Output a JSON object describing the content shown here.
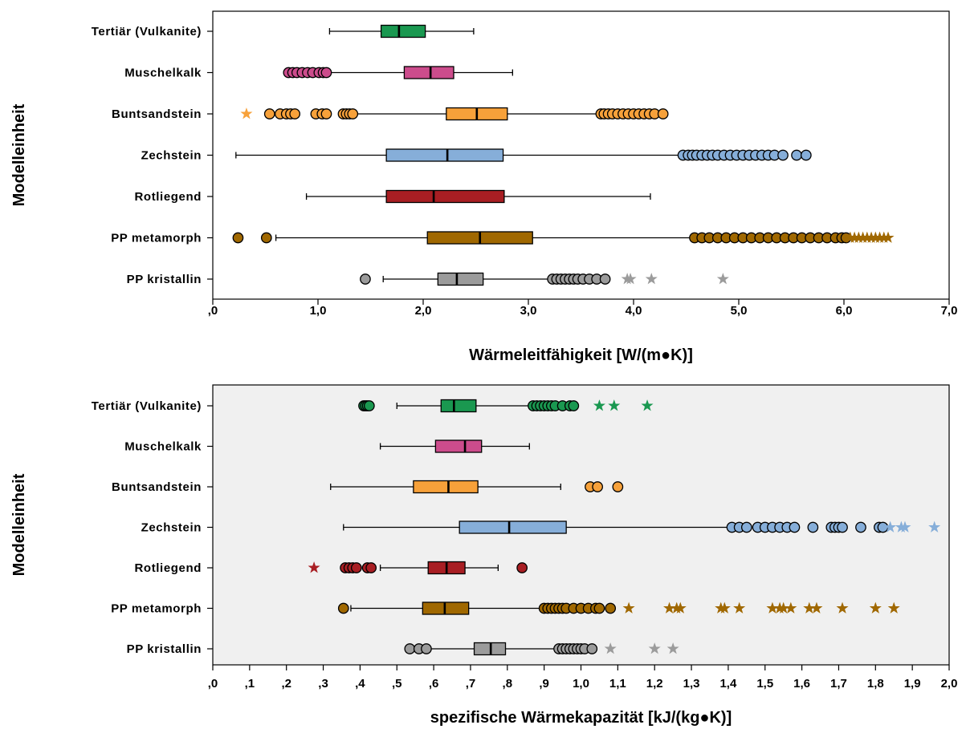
{
  "chart_data": [
    {
      "type": "boxplot",
      "orientation": "horizontal",
      "xlabel": "Wärmeleitfähigkeit [W/(m●K)]",
      "ylabel": "Modelleinheit",
      "xlim": [
        0,
        7
      ],
      "xticks": [
        {
          "v": 0,
          "label": ",0"
        },
        {
          "v": 1,
          "label": "1,0"
        },
        {
          "v": 2,
          "label": "2,0"
        },
        {
          "v": 3,
          "label": "3,0"
        },
        {
          "v": 4,
          "label": "4,0"
        },
        {
          "v": 5,
          "label": "5,0"
        },
        {
          "v": 6,
          "label": "6,0"
        },
        {
          "v": 7,
          "label": "7,0"
        }
      ],
      "grid": false,
      "background": "#ffffff",
      "categories": [
        "Tertiär (Vulkanite)",
        "Muschelkalk",
        "Buntsandstein",
        "Zechstein",
        "Rotliegend",
        "PP metamorph",
        "PP kristallin"
      ],
      "colors": [
        "#1a9850",
        "#cc4c8c",
        "#f7a13a",
        "#86aed9",
        "#a81e23",
        "#a06800",
        "#9b9b9b"
      ],
      "boxes": [
        {
          "whisker_low": 1.11,
          "q1": 1.6,
          "median": 1.77,
          "q3": 2.02,
          "whisker_high": 2.48,
          "outliers": [],
          "extremes": []
        },
        {
          "whisker_low": 1.1,
          "q1": 1.82,
          "median": 2.07,
          "q3": 2.29,
          "whisker_high": 2.85,
          "outliers": [
            0.72,
            0.76,
            0.8,
            0.85,
            0.9,
            0.95,
            1.01,
            1.05,
            1.08
          ],
          "extremes": []
        },
        {
          "whisker_low": 1.35,
          "q1": 2.22,
          "median": 2.51,
          "q3": 2.8,
          "whisker_high": 3.67,
          "outliers": [
            0.54,
            0.64,
            0.7,
            0.74,
            0.78,
            0.98,
            1.04,
            1.08,
            1.24,
            1.27,
            1.3,
            1.33,
            3.69,
            3.72,
            3.76,
            3.8,
            3.85,
            3.9,
            3.95,
            4.0,
            4.05,
            4.1,
            4.15,
            4.2,
            4.28
          ],
          "extremes": [
            0.32
          ]
        },
        {
          "whisker_low": 0.22,
          "q1": 1.65,
          "median": 2.23,
          "q3": 2.76,
          "whisker_high": 4.44,
          "outliers": [
            4.47,
            4.52,
            4.56,
            4.6,
            4.65,
            4.7,
            4.75,
            4.8,
            4.86,
            4.92,
            4.98,
            5.04,
            5.1,
            5.16,
            5.22,
            5.28,
            5.34,
            5.42,
            5.55,
            5.64
          ],
          "extremes": []
        },
        {
          "whisker_low": 0.89,
          "q1": 1.65,
          "median": 2.1,
          "q3": 2.77,
          "whisker_high": 4.16,
          "outliers": [],
          "extremes": []
        },
        {
          "whisker_low": 0.6,
          "q1": 2.04,
          "median": 2.54,
          "q3": 3.04,
          "whisker_high": 4.55,
          "outliers": [
            0.24,
            0.51,
            4.58,
            4.65,
            4.72,
            4.8,
            4.88,
            4.96,
            5.04,
            5.12,
            5.2,
            5.28,
            5.36,
            5.44,
            5.52,
            5.6,
            5.68,
            5.76,
            5.84,
            5.92,
            5.98,
            6.02
          ],
          "extremes": [
            6.06,
            6.1,
            6.14,
            6.18,
            6.22,
            6.26,
            6.3,
            6.34,
            6.38,
            6.42
          ]
        },
        {
          "whisker_low": 1.62,
          "q1": 2.14,
          "median": 2.32,
          "q3": 2.57,
          "whisker_high": 3.2,
          "outliers": [
            1.45,
            3.23,
            3.27,
            3.31,
            3.35,
            3.39,
            3.43,
            3.47,
            3.52,
            3.58,
            3.65,
            3.73
          ],
          "extremes": [
            3.94,
            3.97,
            4.17,
            4.85
          ]
        }
      ]
    },
    {
      "type": "boxplot",
      "orientation": "horizontal",
      "xlabel": "spezifische Wärmekapazität [kJ/(kg●K)]",
      "ylabel": "Modelleinheit",
      "xlim": [
        0,
        2
      ],
      "xticks": [
        {
          "v": 0,
          "label": ",0"
        },
        {
          "v": 0.1,
          "label": ",1"
        },
        {
          "v": 0.2,
          "label": ",2"
        },
        {
          "v": 0.3,
          "label": ",3"
        },
        {
          "v": 0.4,
          "label": ",4"
        },
        {
          "v": 0.5,
          "label": ",5"
        },
        {
          "v": 0.6,
          "label": ",6"
        },
        {
          "v": 0.7,
          "label": ",7"
        },
        {
          "v": 0.8,
          "label": ",8"
        },
        {
          "v": 0.9,
          "label": ",9"
        },
        {
          "v": 1.0,
          "label": "1,0"
        },
        {
          "v": 1.1,
          "label": "1,1"
        },
        {
          "v": 1.2,
          "label": "1,2"
        },
        {
          "v": 1.3,
          "label": "1,3"
        },
        {
          "v": 1.4,
          "label": "1,4"
        },
        {
          "v": 1.5,
          "label": "1,5"
        },
        {
          "v": 1.6,
          "label": "1,6"
        },
        {
          "v": 1.7,
          "label": "1,7"
        },
        {
          "v": 1.8,
          "label": "1,8"
        },
        {
          "v": 1.9,
          "label": "1,9"
        },
        {
          "v": 2.0,
          "label": "2,0"
        }
      ],
      "grid": false,
      "background": "#f0f0f0",
      "categories": [
        "Tertiär (Vulkanite)",
        "Muschelkalk",
        "Buntsandstein",
        "Zechstein",
        "Rotliegend",
        "PP metamorph",
        "PP kristallin"
      ],
      "colors": [
        "#1a9850",
        "#cc4c8c",
        "#f7a13a",
        "#86aed9",
        "#a81e23",
        "#a06800",
        "#9b9b9b"
      ],
      "boxes": [
        {
          "whisker_low": 0.5,
          "q1": 0.62,
          "median": 0.655,
          "q3": 0.715,
          "whisker_high": 0.865,
          "outliers": [
            0.41,
            0.415,
            0.42,
            0.425,
            0.87,
            0.88,
            0.89,
            0.9,
            0.91,
            0.92,
            0.93,
            0.95,
            0.97,
            0.98
          ],
          "extremes": [
            1.05,
            1.09,
            1.18
          ]
        },
        {
          "whisker_low": 0.455,
          "q1": 0.605,
          "median": 0.685,
          "q3": 0.73,
          "whisker_high": 0.86,
          "outliers": [],
          "extremes": []
        },
        {
          "whisker_low": 0.32,
          "q1": 0.545,
          "median": 0.64,
          "q3": 0.72,
          "whisker_high": 0.945,
          "outliers": [
            1.025,
            1.045,
            1.1
          ],
          "extremes": []
        },
        {
          "whisker_low": 0.355,
          "q1": 0.67,
          "median": 0.805,
          "q3": 0.96,
          "whisker_high": 1.4,
          "outliers": [
            1.41,
            1.43,
            1.45,
            1.48,
            1.5,
            1.52,
            1.54,
            1.56,
            1.58,
            1.63,
            1.68,
            1.69,
            1.7,
            1.71,
            1.76,
            1.81,
            1.82
          ],
          "extremes": [
            1.84,
            1.87,
            1.88,
            1.96
          ]
        },
        {
          "whisker_low": 0.455,
          "q1": 0.585,
          "median": 0.635,
          "q3": 0.685,
          "whisker_high": 0.775,
          "outliers": [
            0.36,
            0.37,
            0.38,
            0.39,
            0.42,
            0.43,
            0.84
          ],
          "extremes": [
            0.275
          ]
        },
        {
          "whisker_low": 0.375,
          "q1": 0.57,
          "median": 0.63,
          "q3": 0.695,
          "whisker_high": 0.89,
          "outliers": [
            0.355,
            0.9,
            0.91,
            0.92,
            0.93,
            0.94,
            0.95,
            0.96,
            0.98,
            1.0,
            1.02,
            1.04,
            1.05,
            1.08
          ],
          "extremes": [
            1.13,
            1.24,
            1.26,
            1.27,
            1.38,
            1.39,
            1.43,
            1.52,
            1.54,
            1.55,
            1.57,
            1.62,
            1.64,
            1.71,
            1.8,
            1.85
          ]
        },
        {
          "whisker_low": 0.535,
          "q1": 0.71,
          "median": 0.755,
          "q3": 0.795,
          "whisker_high": 0.935,
          "outliers": [
            0.535,
            0.56,
            0.58,
            0.94,
            0.95,
            0.96,
            0.97,
            0.98,
            0.99,
            1.0,
            1.01,
            1.03
          ],
          "extremes": [
            1.08,
            1.2,
            1.25
          ]
        }
      ]
    }
  ]
}
